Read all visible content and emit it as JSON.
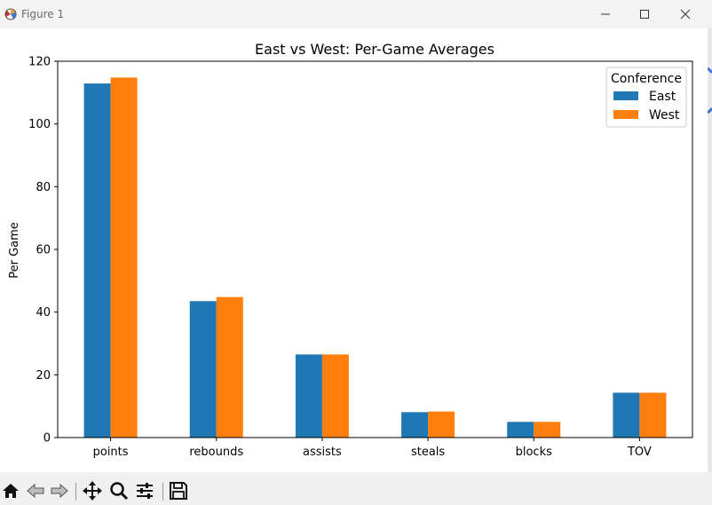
{
  "window": {
    "title": "Figure 1",
    "minimize_icon": "minimize-icon",
    "maximize_icon": "maximize-icon",
    "close_icon": "close-icon"
  },
  "toolbar": {
    "icons": [
      "home-icon",
      "back-arrow-icon",
      "forward-arrow-icon",
      "pan-icon",
      "zoom-icon",
      "configure-subplots-icon",
      "save-icon"
    ]
  },
  "chart_data": {
    "type": "bar",
    "title": "East vs West: Per-Game Averages",
    "xlabel": "",
    "ylabel": "Per Game",
    "categories": [
      "points",
      "rebounds",
      "assists",
      "steals",
      "blocks",
      "TOV"
    ],
    "series": [
      {
        "name": "East",
        "color": "#1f77b4",
        "values": [
          112.9,
          43.5,
          26.5,
          8.1,
          5.0,
          14.3
        ]
      },
      {
        "name": "West",
        "color": "#ff7f0e",
        "values": [
          114.8,
          44.8,
          26.5,
          8.3,
          5.0,
          14.3
        ]
      }
    ],
    "ylim": [
      0,
      120
    ],
    "yticks": [
      0,
      20,
      40,
      60,
      80,
      100,
      120
    ],
    "legend": {
      "title": "Conference",
      "position": "top-right"
    },
    "grid": false
  }
}
